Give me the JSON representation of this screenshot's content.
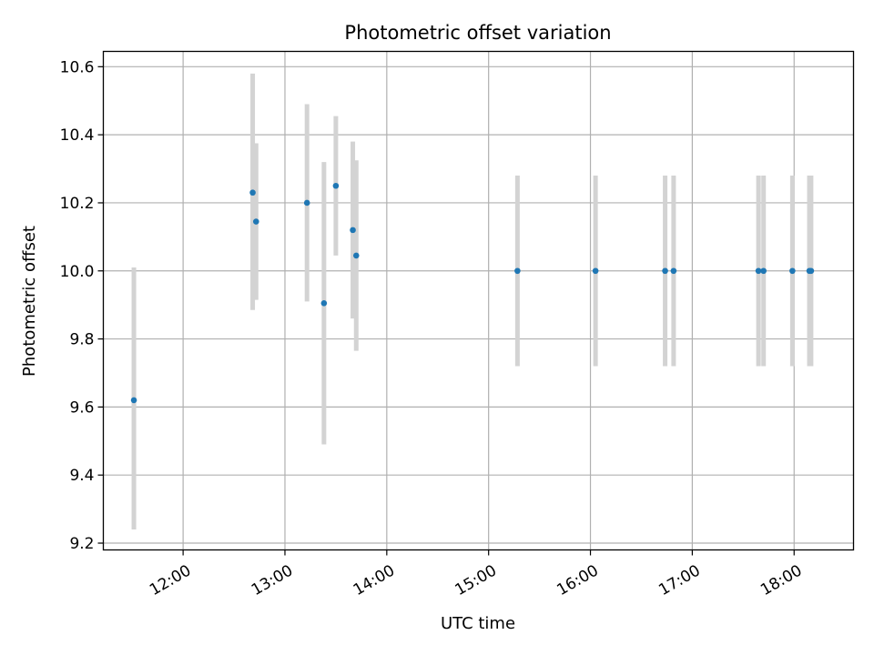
{
  "chart_data": {
    "type": "scatter",
    "title": "Photometric offset variation",
    "xlabel": "UTC time",
    "ylabel": "Photometric offset",
    "x_tick_labels": [
      "12:00",
      "13:00",
      "14:00",
      "15:00",
      "16:00",
      "17:00",
      "18:00"
    ],
    "y_tick_labels": [
      "9.2",
      "9.4",
      "9.6",
      "9.8",
      "10.0",
      "10.2",
      "10.4",
      "10.6"
    ],
    "xlim": [
      "11:13",
      "18:35"
    ],
    "ylim": [
      9.18,
      10.645
    ],
    "grid": true,
    "marker_color": "#1f77b4",
    "errorbar_color": "#d3d3d3",
    "points": [
      {
        "time": "11:31",
        "value": 9.62,
        "error_low": 9.24,
        "error_high": 10.01
      },
      {
        "time": "12:41",
        "value": 10.23,
        "error_low": 9.885,
        "error_high": 10.58
      },
      {
        "time": "12:43",
        "value": 10.145,
        "error_low": 9.915,
        "error_high": 10.375
      },
      {
        "time": "13:13",
        "value": 10.2,
        "error_low": 9.91,
        "error_high": 10.49
      },
      {
        "time": "13:23",
        "value": 9.905,
        "error_low": 9.49,
        "error_high": 10.32
      },
      {
        "time": "13:30",
        "value": 10.25,
        "error_low": 10.045,
        "error_high": 10.455
      },
      {
        "time": "13:40",
        "value": 10.12,
        "error_low": 9.86,
        "error_high": 10.38
      },
      {
        "time": "13:42",
        "value": 10.045,
        "error_low": 9.765,
        "error_high": 10.325
      },
      {
        "time": "15:17",
        "value": 10.0,
        "error_low": 9.72,
        "error_high": 10.28
      },
      {
        "time": "16:03",
        "value": 10.0,
        "error_low": 9.72,
        "error_high": 10.28
      },
      {
        "time": "16:44",
        "value": 10.0,
        "error_low": 9.72,
        "error_high": 10.28
      },
      {
        "time": "16:49",
        "value": 10.0,
        "error_low": 9.72,
        "error_high": 10.28
      },
      {
        "time": "17:39",
        "value": 10.0,
        "error_low": 9.72,
        "error_high": 10.28
      },
      {
        "time": "17:42",
        "value": 10.0,
        "error_low": 9.72,
        "error_high": 10.28
      },
      {
        "time": "17:59",
        "value": 10.0,
        "error_low": 9.72,
        "error_high": 10.28
      },
      {
        "time": "18:09",
        "value": 10.0,
        "error_low": 9.72,
        "error_high": 10.28
      },
      {
        "time": "18:10",
        "value": 10.0,
        "error_low": 9.72,
        "error_high": 10.28
      }
    ]
  }
}
